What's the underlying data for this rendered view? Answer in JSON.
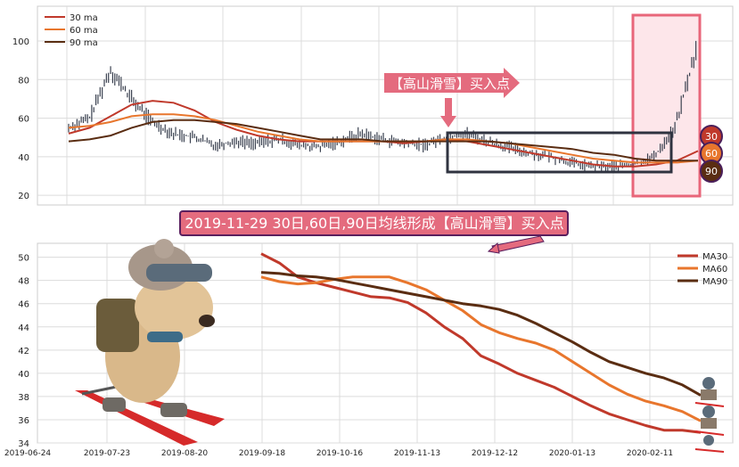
{
  "annotations": {
    "buy_point_label": "【高山滑雪】买入点",
    "main_banner": "2019-11-29 30日,60日,90日均线形成【高山滑雪】买入点",
    "badges": [
      "30",
      "60",
      "90"
    ]
  },
  "colors": {
    "ma30": "#c0392b",
    "ma60": "#e8762d",
    "ma90": "#5a2d12",
    "candles": "#3a4150",
    "highlight_box": "#e8667a",
    "highlight_fill": "#fde6ea",
    "dark_box": "#2f3340",
    "banner_bg": "#e46b7e",
    "banner_border": "#5a1f5e"
  },
  "chart_data": [
    {
      "type": "line",
      "panel": "overview",
      "yticks": [
        20,
        40,
        60,
        80,
        100
      ],
      "ylim": [
        15,
        118
      ],
      "legend": [
        "30 ma",
        "60 ma",
        "90 ma"
      ],
      "legend_position": "top-left",
      "grid": true,
      "series": [
        {
          "name": "30 ma",
          "values": [
            52,
            55,
            61,
            67,
            69,
            68,
            64,
            58,
            54,
            51,
            49,
            48,
            48,
            48,
            48,
            48,
            47,
            48,
            49,
            48,
            46,
            44,
            42,
            40,
            38,
            36,
            35,
            35,
            36,
            38,
            43
          ]
        },
        {
          "name": "60 ma",
          "values": [
            55,
            56,
            58,
            61,
            62,
            62,
            61,
            59,
            56,
            53,
            51,
            49,
            48,
            48,
            48,
            48,
            48,
            48,
            49,
            49,
            48,
            47,
            45,
            43,
            41,
            39,
            38,
            37,
            37,
            37,
            38
          ]
        },
        {
          "name": "90 ma",
          "values": [
            48,
            49,
            51,
            55,
            58,
            59,
            59,
            58,
            57,
            55,
            53,
            51,
            49,
            49,
            49,
            48,
            48,
            48,
            48,
            48,
            48,
            47,
            46,
            45,
            44,
            42,
            41,
            39,
            38,
            38,
            38
          ]
        }
      ],
      "price_approx": [
        55,
        60,
        85,
        70,
        58,
        52,
        50,
        46,
        48,
        47,
        49,
        46,
        45,
        48,
        52,
        49,
        47,
        46,
        50,
        52,
        48,
        45,
        42,
        40,
        37,
        35,
        35,
        36,
        40,
        55,
        95
      ]
    },
    {
      "type": "line",
      "panel": "detail",
      "x_tick_labels": [
        "2019-06-24",
        "2019-07-23",
        "2019-08-20",
        "2019-09-18",
        "2019-10-16",
        "2019-11-13",
        "2019-12-12",
        "2020-01-13",
        "2020-02-11"
      ],
      "yticks": [
        34,
        36,
        38,
        40,
        42,
        44,
        46,
        48,
        50
      ],
      "ylim": [
        34,
        51.2
      ],
      "legend": [
        "MA30",
        "MA60",
        "MA90"
      ],
      "legend_position": "top-right",
      "grid": true,
      "series": [
        {
          "name": "MA30",
          "values": [
            50.3,
            49.5,
            48.3,
            47.8,
            47.4,
            47.0,
            46.6,
            46.5,
            46.1,
            45.2,
            44.0,
            43.0,
            41.5,
            40.8,
            40.0,
            39.4,
            38.8,
            38.0,
            37.2,
            36.5,
            36.0,
            35.5,
            35.1,
            35.1,
            34.9
          ]
        },
        {
          "name": "MA60",
          "values": [
            48.3,
            47.9,
            47.7,
            47.8,
            48.1,
            48.3,
            48.3,
            48.3,
            47.8,
            47.2,
            46.3,
            45.4,
            44.2,
            43.5,
            43.0,
            42.6,
            42.0,
            41.0,
            40.0,
            39.0,
            38.2,
            37.6,
            37.2,
            36.7,
            35.9
          ]
        },
        {
          "name": "MA90",
          "values": [
            48.7,
            48.6,
            48.4,
            48.3,
            48.1,
            47.8,
            47.5,
            47.2,
            46.9,
            46.6,
            46.3,
            46.0,
            45.8,
            45.5,
            45.0,
            44.3,
            43.5,
            42.7,
            41.8,
            41.0,
            40.5,
            40.0,
            39.6,
            39.0,
            38.1
          ]
        }
      ]
    }
  ]
}
